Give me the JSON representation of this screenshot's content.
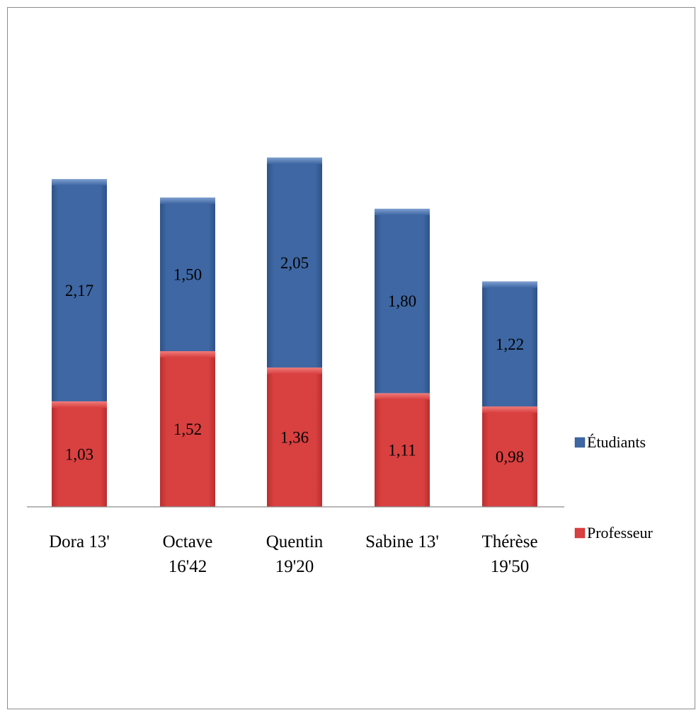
{
  "chart_data": {
    "type": "bar",
    "stacked": true,
    "categories": [
      [
        "Dora 13'"
      ],
      [
        "Octave",
        "16'42"
      ],
      [
        "Quentin",
        "19'20"
      ],
      [
        "Sabine 13'"
      ],
      [
        "Thérèse",
        "19'50"
      ]
    ],
    "series": [
      {
        "name": "Professeur",
        "color": "#d94040",
        "values": [
          1.03,
          1.52,
          1.36,
          1.11,
          0.98
        ],
        "labels": [
          "1,03",
          "1,52",
          "1,36",
          "1,11",
          "0,98"
        ]
      },
      {
        "name": "Étudiants",
        "color": "#3e67a3",
        "values": [
          2.17,
          1.5,
          2.05,
          1.8,
          1.22
        ],
        "labels": [
          "2,17",
          "1,50",
          "2,05",
          "1,80",
          "1,22"
        ]
      }
    ],
    "legend_order": [
      "Étudiants",
      "Professeur"
    ],
    "legend_position": "right",
    "ylim": [
      0,
      3.5
    ],
    "y_axis_visible": false,
    "grid": false
  }
}
